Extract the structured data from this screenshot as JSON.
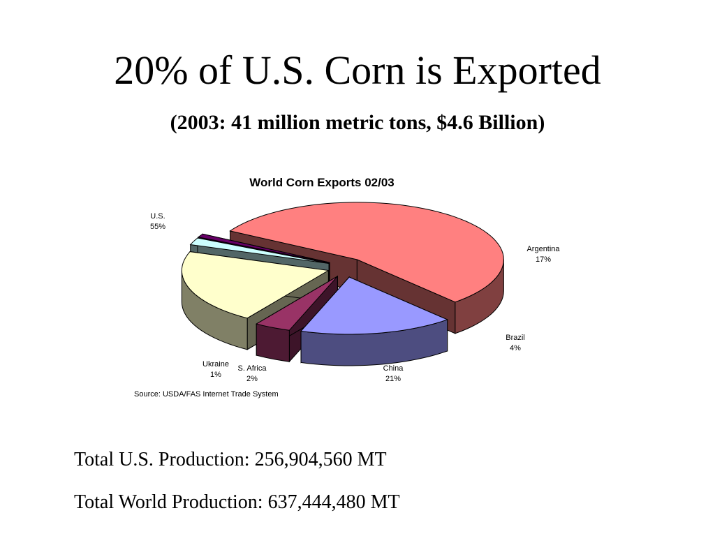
{
  "slide": {
    "title": "20% of U.S. Corn is Exported",
    "subtitle": "(2003: 41 million metric tons, $4.6 Billion)",
    "stats": [
      "Total U.S. Production: 256,904,560 MT",
      "Total World Production: 637,444,480 MT"
    ]
  },
  "chart_data": {
    "type": "pie",
    "title": "World Corn Exports 02/03",
    "source": "Source: USDA/FAS Internet Trade System",
    "three_d": true,
    "exploded": true,
    "slices": [
      {
        "label": "U.S.",
        "value": 55,
        "value_label": "55%",
        "color": "#ff8080"
      },
      {
        "label": "Argentina",
        "value": 17,
        "value_label": "17%",
        "color": "#9999ff"
      },
      {
        "label": "Brazil",
        "value": 4,
        "value_label": "4%",
        "color": "#993366"
      },
      {
        "label": "China",
        "value": 21,
        "value_label": "21%",
        "color": "#ffffcc"
      },
      {
        "label": "S. Africa",
        "value": 2,
        "value_label": "2%",
        "color": "#ccffff"
      },
      {
        "label": "Ukraine",
        "value": 1,
        "value_label": "1%",
        "color": "#660066"
      }
    ]
  }
}
